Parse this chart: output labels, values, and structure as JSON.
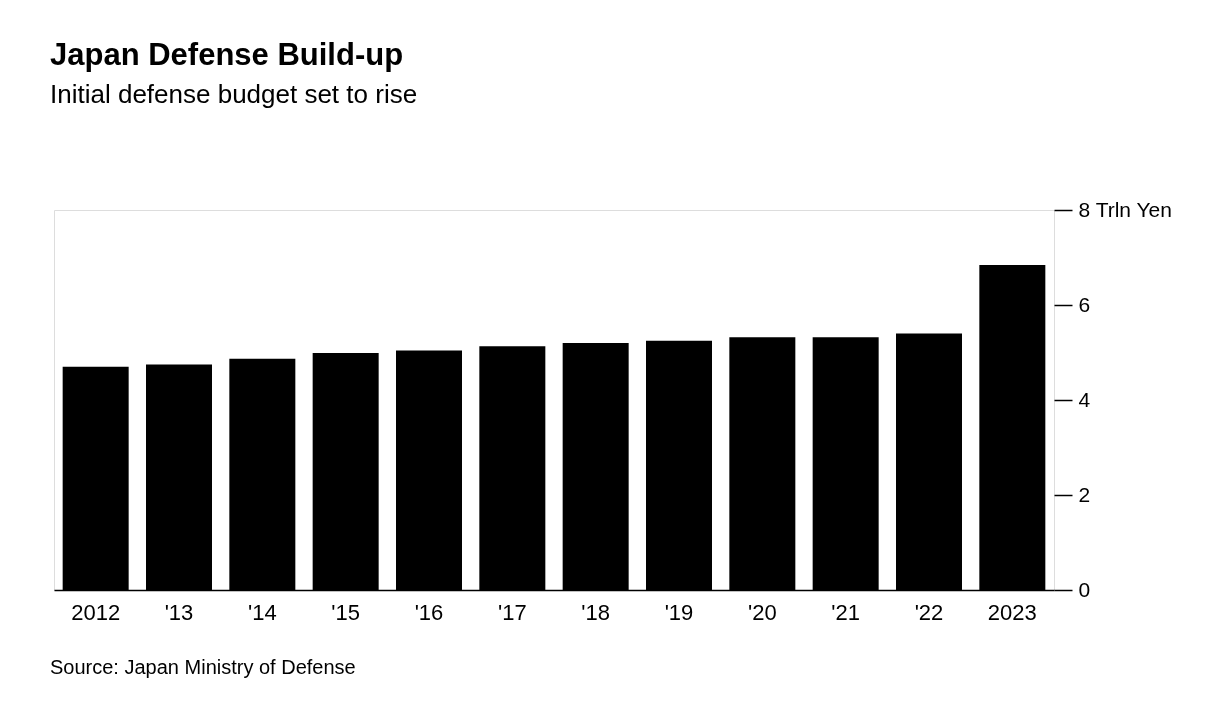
{
  "chart_data": {
    "type": "bar",
    "title": "Japan Defense Build-up",
    "subtitle": "Initial defense budget set to rise",
    "categories": [
      "2012",
      "'13",
      "'14",
      "'15",
      "'16",
      "'17",
      "'18",
      "'19",
      "'20",
      "'21",
      "'22",
      "2023"
    ],
    "values": [
      4.7,
      4.75,
      4.87,
      4.99,
      5.04,
      5.13,
      5.2,
      5.25,
      5.32,
      5.32,
      5.4,
      6.84
    ],
    "color": "#000000",
    "ylim": [
      0,
      8
    ],
    "yticks": [
      0,
      2,
      4,
      6,
      {
        "value": 8,
        "label": "8 Trln Yen"
      }
    ],
    "grid": false,
    "annotations": [
      "Source: Japan Ministry of Defense"
    ]
  }
}
